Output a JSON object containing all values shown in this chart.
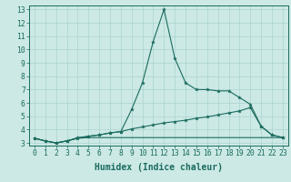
{
  "xlabel": "Humidex (Indice chaleur)",
  "ylabel": "",
  "xlim": [
    -0.5,
    23.5
  ],
  "ylim": [
    2.8,
    13.3
  ],
  "xticks": [
    0,
    1,
    2,
    3,
    4,
    5,
    6,
    7,
    8,
    9,
    10,
    11,
    12,
    13,
    14,
    15,
    16,
    17,
    18,
    19,
    20,
    21,
    22,
    23
  ],
  "yticks": [
    3,
    4,
    5,
    6,
    7,
    8,
    9,
    10,
    11,
    12,
    13
  ],
  "bg_color": "#cce9e5",
  "grid_color": "#aad4d0",
  "line_color": "#1a6b5e",
  "line1_x": [
    0,
    1,
    2,
    3,
    4,
    5,
    6,
    7,
    8,
    9,
    10,
    11,
    12,
    13,
    14,
    15,
    16,
    17,
    18,
    19,
    20,
    21,
    22,
    23
  ],
  "line1_y": [
    3.35,
    3.15,
    3.0,
    3.15,
    3.4,
    3.5,
    3.6,
    3.75,
    3.85,
    5.5,
    7.5,
    10.6,
    13.0,
    9.35,
    7.5,
    7.0,
    7.0,
    6.9,
    6.9,
    6.4,
    5.9,
    4.25,
    3.6,
    3.4
  ],
  "line2_x": [
    0,
    1,
    2,
    3,
    4,
    5,
    6,
    7,
    8,
    9,
    10,
    11,
    12,
    13,
    14,
    15,
    16,
    17,
    18,
    19,
    20,
    21,
    22,
    23
  ],
  "line2_y": [
    3.35,
    3.15,
    3.0,
    3.15,
    3.35,
    3.5,
    3.6,
    3.75,
    3.85,
    4.05,
    4.2,
    4.35,
    4.5,
    4.6,
    4.7,
    4.85,
    4.95,
    5.1,
    5.25,
    5.4,
    5.65,
    4.25,
    3.6,
    3.4
  ],
  "line3_x": [
    0,
    1,
    2,
    3,
    4,
    5,
    6,
    7,
    8,
    9,
    10,
    11,
    12,
    13,
    14,
    15,
    16,
    17,
    18,
    19,
    20,
    21,
    22,
    23
  ],
  "line3_y": [
    3.35,
    3.15,
    3.0,
    3.15,
    3.35,
    3.4,
    3.4,
    3.4,
    3.4,
    3.4,
    3.4,
    3.4,
    3.4,
    3.4,
    3.4,
    3.4,
    3.4,
    3.4,
    3.4,
    3.4,
    3.4,
    3.4,
    3.4,
    3.4
  ],
  "font_size_label": 7.0,
  "font_size_tick": 5.8
}
